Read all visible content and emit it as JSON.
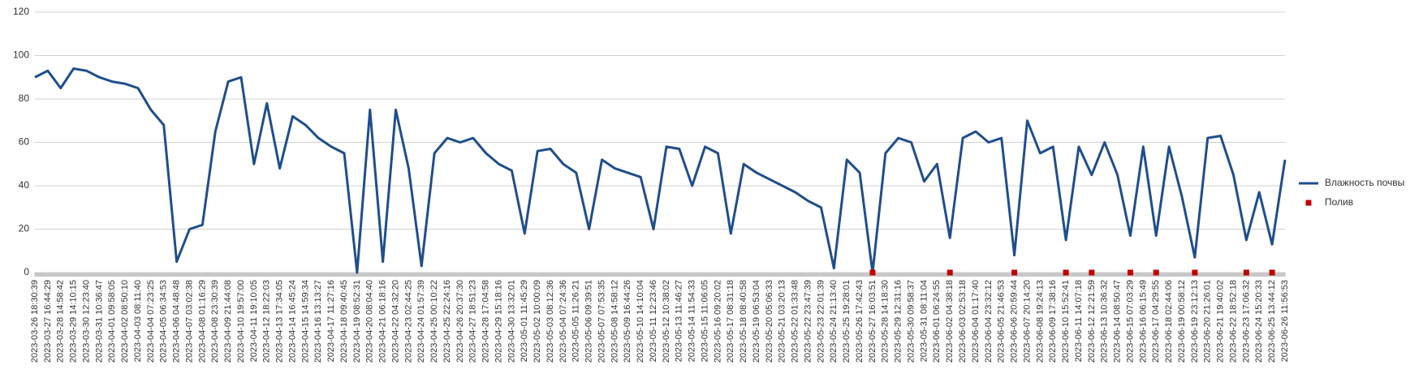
{
  "chart_data": {
    "type": "line",
    "categories": [
      "2023-03-26 18:30:39",
      "2023-03-27 16:44:29",
      "2023-03-28 14:58:42",
      "2023-03-29 14:10:15",
      "2023-03-30 12:23:40",
      "2023-03-31 10:36:47",
      "2023-04-01 09:58:05",
      "2023-04-02 08:50:10",
      "2023-04-03 08:11:40",
      "2023-04-04 07:23:25",
      "2023-04-05 06:34:53",
      "2023-04-06 04:48:48",
      "2023-04-07 03:02:38",
      "2023-04-08 01:16:29",
      "2023-04-08 23:30:39",
      "2023-04-09 21:44:08",
      "2023-04-10 19:57:00",
      "2023-04-11 19:10:05",
      "2023-04-12 18:22:03",
      "2023-04-13 17:34:05",
      "2023-04-14 16:45:24",
      "2023-04-15 14:59:34",
      "2023-04-16 13:13:27",
      "2023-04-17 11:27:16",
      "2023-04-18 09:40:45",
      "2023-04-19 08:52:31",
      "2023-04-20 08:04:40",
      "2023-04-21 06:18:16",
      "2023-04-22 04:32:20",
      "2023-04-23 02:44:25",
      "2023-04-24 01:57:39",
      "2023-04-25 00:10:22",
      "2023-04-25 22:24:16",
      "2023-04-26 20:37:30",
      "2023-04-27 18:51:23",
      "2023-04-28 17:04:58",
      "2023-04-29 15:18:16",
      "2023-04-30 13:32:01",
      "2023-05-01 11:45:29",
      "2023-05-02 10:00:09",
      "2023-05-03 08:12:36",
      "2023-05-04 07:24:36",
      "2023-05-05 11:26:21",
      "2023-05-06 09:39:51",
      "2023-05-07 07:53:35",
      "2023-05-08 14:58:12",
      "2023-05-09 16:44:26",
      "2023-05-10 14:10:04",
      "2023-05-11 12:23:46",
      "2023-05-12 10:38:02",
      "2023-05-13 11:46:27",
      "2023-05-14 11:54:33",
      "2023-05-15 11:06:05",
      "2023-05-16 09:20:02",
      "2023-05-17 08:31:18",
      "2023-05-18 08:40:58",
      "2023-05-19 06:53:04",
      "2023-05-20 05:06:33",
      "2023-05-21 03:20:13",
      "2023-05-22 01:33:48",
      "2023-05-22 23:47:39",
      "2023-05-23 22:01:39",
      "2023-05-24 21:13:40",
      "2023-05-25 19:28:01",
      "2023-05-26 17:42:43",
      "2023-05-27 16:03:51",
      "2023-05-28 14:18:30",
      "2023-05-29 12:31:16",
      "2023-05-30 09:58:37",
      "2023-05-31 08:11:04",
      "2023-06-01 06:24:55",
      "2023-06-02 04:38:18",
      "2023-06-03 02:53:18",
      "2023-06-04 01:17:40",
      "2023-06-04 23:32:12",
      "2023-06-05 21:46:53",
      "2023-06-06 20:59:44",
      "2023-06-07 20:14:20",
      "2023-06-08 19:24:13",
      "2023-06-09 17:38:16",
      "2023-06-10 15:52:41",
      "2023-06-11 14:07:18",
      "2023-06-12 12:21:59",
      "2023-06-13 10:36:32",
      "2023-06-14 08:50:47",
      "2023-06-15 07:03:29",
      "2023-06-16 06:15:49",
      "2023-06-17 04:29:55",
      "2023-06-18 02:44:06",
      "2023-06-19 00:58:12",
      "2023-06-19 23:12:13",
      "2023-06-20 21:26:01",
      "2023-06-21 19:40:02",
      "2023-06-22 18:52:18",
      "2023-06-23 17:06:32",
      "2023-06-24 15:20:33",
      "2023-06-25 13:44:12",
      "2023-06-26 11:56:53"
    ],
    "series": [
      {
        "name": "Влажность почвы",
        "color": "#1f4e8c",
        "mode": "line",
        "values": [
          90,
          93,
          85,
          94,
          93,
          90,
          88,
          87,
          85,
          75,
          68,
          5,
          20,
          22,
          65,
          88,
          90,
          50,
          78,
          48,
          72,
          68,
          62,
          58,
          55,
          0,
          75,
          5,
          75,
          48,
          3,
          55,
          62,
          60,
          62,
          55,
          50,
          47,
          18,
          56,
          57,
          50,
          46,
          20,
          52,
          48,
          46,
          44,
          20,
          58,
          57,
          40,
          58,
          55,
          18,
          50,
          46,
          43,
          40,
          37,
          33,
          30,
          2,
          52,
          46,
          0,
          55,
          62,
          60,
          42,
          50,
          16,
          62,
          65,
          60,
          62,
          8,
          70,
          55,
          58,
          15,
          58,
          45,
          60,
          45,
          17,
          58,
          17,
          58,
          35,
          7,
          62,
          63,
          45,
          15,
          37,
          13,
          52
        ]
      },
      {
        "name": "Полив",
        "color": "#c00000",
        "mode": "markers",
        "values": [
          null,
          null,
          null,
          null,
          null,
          null,
          null,
          null,
          null,
          null,
          null,
          null,
          null,
          null,
          null,
          null,
          null,
          null,
          null,
          null,
          null,
          null,
          null,
          null,
          null,
          null,
          null,
          null,
          null,
          null,
          null,
          null,
          null,
          null,
          null,
          null,
          null,
          null,
          null,
          null,
          null,
          null,
          null,
          null,
          null,
          null,
          null,
          null,
          null,
          null,
          null,
          null,
          null,
          null,
          null,
          null,
          null,
          null,
          null,
          null,
          null,
          null,
          null,
          null,
          null,
          0,
          null,
          null,
          null,
          null,
          null,
          0,
          null,
          null,
          null,
          null,
          0,
          null,
          null,
          null,
          0,
          null,
          0,
          null,
          null,
          0,
          null,
          0,
          null,
          null,
          0,
          null,
          null,
          null,
          0,
          null,
          0,
          null
        ]
      }
    ],
    "ylim": [
      0,
      120
    ],
    "yticks": [
      0,
      20,
      40,
      60,
      80,
      100,
      120
    ],
    "grid": true,
    "legend": "right"
  }
}
